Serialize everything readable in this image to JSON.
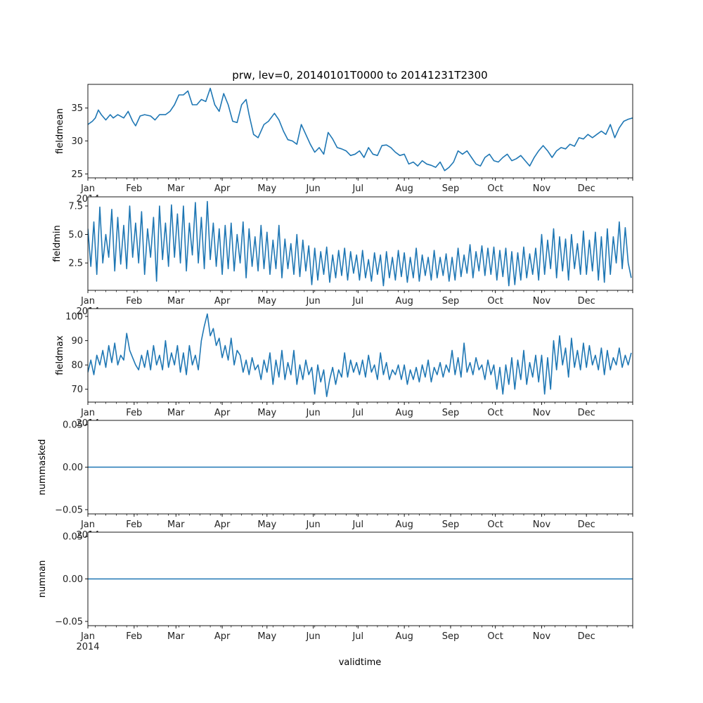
{
  "colors": {
    "line": "#1f77b4",
    "axis": "#000000"
  },
  "chart_data": {
    "type": "line",
    "title": "prw, lev=0, 20140101T0000 to 20141231T2300",
    "xlabel": "validtime",
    "x_units": "day of year 2014 (0 = Jan 1)",
    "x_range": [
      0,
      365
    ],
    "x_ticks": [
      {
        "day": 0,
        "label": "Jan"
      },
      {
        "day": 31,
        "label": "Feb"
      },
      {
        "day": 59,
        "label": "Mar"
      },
      {
        "day": 90,
        "label": "Apr"
      },
      {
        "day": 120,
        "label": "May"
      },
      {
        "day": 151,
        "label": "Jun"
      },
      {
        "day": 181,
        "label": "Jul"
      },
      {
        "day": 212,
        "label": "Aug"
      },
      {
        "day": 243,
        "label": "Sep"
      },
      {
        "day": 273,
        "label": "Oct"
      },
      {
        "day": 304,
        "label": "Nov"
      },
      {
        "day": 334,
        "label": "Dec"
      }
    ],
    "year_label": "2014",
    "panels": [
      {
        "ylabel": "fieldmean",
        "ylim": [
          24.4,
          38.6
        ],
        "yticks": [
          {
            "v": 25,
            "label": "25"
          },
          {
            "v": 30,
            "label": "30"
          },
          {
            "v": 35,
            "label": "35"
          }
        ],
        "points": [
          [
            0,
            32.5
          ],
          [
            3,
            33
          ],
          [
            5,
            33.5
          ],
          [
            7,
            34.7
          ],
          [
            9,
            34
          ],
          [
            12,
            33.2
          ],
          [
            15,
            34
          ],
          [
            17,
            33.5
          ],
          [
            20,
            34
          ],
          [
            24,
            33.5
          ],
          [
            27,
            34.5
          ],
          [
            30,
            33
          ],
          [
            32,
            32.3
          ],
          [
            35,
            33.8
          ],
          [
            38,
            34
          ],
          [
            42,
            33.8
          ],
          [
            45,
            33.2
          ],
          [
            48,
            34
          ],
          [
            52,
            34
          ],
          [
            55,
            34.5
          ],
          [
            58,
            35.5
          ],
          [
            61,
            37
          ],
          [
            64,
            37
          ],
          [
            67,
            37.6
          ],
          [
            70,
            35.5
          ],
          [
            73,
            35.5
          ],
          [
            76,
            36.3
          ],
          [
            79,
            36
          ],
          [
            82,
            38
          ],
          [
            85,
            35.5
          ],
          [
            88,
            34.5
          ],
          [
            91,
            37.2
          ],
          [
            94,
            35.5
          ],
          [
            97,
            33
          ],
          [
            100,
            32.8
          ],
          [
            103,
            35.5
          ],
          [
            106,
            36.3
          ],
          [
            108,
            34
          ],
          [
            111,
            31
          ],
          [
            114,
            30.5
          ],
          [
            118,
            32.5
          ],
          [
            121,
            33
          ],
          [
            125,
            34.2
          ],
          [
            128,
            33.2
          ],
          [
            131,
            31.5
          ],
          [
            134,
            30.2
          ],
          [
            137,
            30
          ],
          [
            140,
            29.5
          ],
          [
            143,
            32.5
          ],
          [
            146,
            31
          ],
          [
            149,
            29.5
          ],
          [
            152,
            28.3
          ],
          [
            155,
            29
          ],
          [
            158,
            28
          ],
          [
            161,
            31.3
          ],
          [
            164,
            30.3
          ],
          [
            167,
            29
          ],
          [
            170,
            28.8
          ],
          [
            173,
            28.5
          ],
          [
            176,
            27.8
          ],
          [
            179,
            28
          ],
          [
            182,
            28.5
          ],
          [
            185,
            27.5
          ],
          [
            188,
            29
          ],
          [
            191,
            28
          ],
          [
            194,
            27.8
          ],
          [
            197,
            29.3
          ],
          [
            200,
            29.4
          ],
          [
            203,
            29
          ],
          [
            206,
            28.3
          ],
          [
            209,
            27.8
          ],
          [
            212,
            28
          ],
          [
            215,
            26.5
          ],
          [
            218,
            26.8
          ],
          [
            221,
            26.2
          ],
          [
            224,
            27
          ],
          [
            227,
            26.5
          ],
          [
            230,
            26.3
          ],
          [
            233,
            26
          ],
          [
            236,
            26.8
          ],
          [
            239,
            25.5
          ],
          [
            242,
            26
          ],
          [
            245,
            26.8
          ],
          [
            248,
            28.5
          ],
          [
            251,
            28
          ],
          [
            254,
            28.5
          ],
          [
            257,
            27.5
          ],
          [
            260,
            26.5
          ],
          [
            263,
            26.2
          ],
          [
            266,
            27.5
          ],
          [
            269,
            28
          ],
          [
            272,
            27
          ],
          [
            275,
            26.8
          ],
          [
            278,
            27.5
          ],
          [
            281,
            28
          ],
          [
            284,
            27
          ],
          [
            287,
            27.3
          ],
          [
            290,
            27.8
          ],
          [
            293,
            27
          ],
          [
            296,
            26.2
          ],
          [
            299,
            27.5
          ],
          [
            302,
            28.5
          ],
          [
            305,
            29.3
          ],
          [
            308,
            28.5
          ],
          [
            311,
            27.5
          ],
          [
            314,
            28.5
          ],
          [
            317,
            29
          ],
          [
            320,
            28.8
          ],
          [
            323,
            29.5
          ],
          [
            326,
            29.2
          ],
          [
            329,
            30.5
          ],
          [
            332,
            30.3
          ],
          [
            335,
            31
          ],
          [
            338,
            30.5
          ],
          [
            341,
            31
          ],
          [
            344,
            31.5
          ],
          [
            347,
            31
          ],
          [
            350,
            32.5
          ],
          [
            353,
            30.5
          ],
          [
            356,
            32
          ],
          [
            359,
            33
          ],
          [
            362,
            33.3
          ],
          [
            365,
            33.5
          ]
        ]
      },
      {
        "ylabel": "fieldmin",
        "ylim": [
          0.1,
          8.3
        ],
        "yticks": [
          {
            "v": 2.5,
            "label": "2.5"
          },
          {
            "v": 5.0,
            "label": "5.0"
          },
          {
            "v": 7.5,
            "label": "7.5"
          }
        ],
        "x_start": 0,
        "x_step": 2,
        "values": [
          5.5,
          2.2,
          6.1,
          1.5,
          7.4,
          2.5,
          5.0,
          3.0,
          7.2,
          1.8,
          6.5,
          2.4,
          5.8,
          2.0,
          7.5,
          3.0,
          6.0,
          2.5,
          7.0,
          1.5,
          5.5,
          3.0,
          6.5,
          0.9,
          7.5,
          2.8,
          6.0,
          2.2,
          7.6,
          3.0,
          6.8,
          2.5,
          7.5,
          1.8,
          6.0,
          3.2,
          7.8,
          2.5,
          6.5,
          2.0,
          7.9,
          2.8,
          6.0,
          2.2,
          5.5,
          1.5,
          5.8,
          2.0,
          6.0,
          1.8,
          5.0,
          2.5,
          6.1,
          1.2,
          5.5,
          2.2,
          4.8,
          1.8,
          5.8,
          2.0,
          5.2,
          1.5,
          4.5,
          2.0,
          5.8,
          1.2,
          4.6,
          2.0,
          4.2,
          1.5,
          5.0,
          1.3,
          4.5,
          1.8,
          4.0,
          0.6,
          3.8,
          1.0,
          3.5,
          1.5,
          3.9,
          0.8,
          3.2,
          1.2,
          3.6,
          1.4,
          3.8,
          1.0,
          3.5,
          1.6,
          3.2,
          1.0,
          3.6,
          1.2,
          2.8,
          0.9,
          3.4,
          1.5,
          3.2,
          0.5,
          3.5,
          1.2,
          3.0,
          1.0,
          3.6,
          1.3,
          3.4,
          0.8,
          3.0,
          1.2,
          3.8,
          0.9,
          3.2,
          1.4,
          3.0,
          1.0,
          3.6,
          1.2,
          3.0,
          1.4,
          3.3,
          0.9,
          3.0,
          1.0,
          3.8,
          1.3,
          3.2,
          1.6,
          4.1,
          1.2,
          3.5,
          1.8,
          4.0,
          1.4,
          3.8,
          1.5,
          3.9,
          1.0,
          3.6,
          1.3,
          3.8,
          0.5,
          3.5,
          0.6,
          3.4,
          1.0,
          3.9,
          1.2,
          3.3,
          1.5,
          3.8,
          1.0,
          5.0,
          1.5,
          4.5,
          2.0,
          5.5,
          1.2,
          4.8,
          1.8,
          4.6,
          1.0,
          5.0,
          2.0,
          4.2,
          1.5,
          5.3,
          1.5,
          4.5,
          1.8,
          5.2,
          1.0,
          4.8,
          0.8,
          5.5,
          1.5,
          4.8,
          2.5,
          6.1,
          2.0,
          5.6,
          2.5,
          1.2
        ]
      },
      {
        "ylabel": "fieldmax",
        "ylim": [
          64.7,
          103.2
        ],
        "yticks": [
          {
            "v": 70,
            "label": "70"
          },
          {
            "v": 80,
            "label": "80"
          },
          {
            "v": 90,
            "label": "90"
          },
          {
            "v": 100,
            "label": "100"
          }
        ],
        "x_start": 0,
        "x_step": 2,
        "values": [
          77,
          82,
          76,
          84,
          80,
          86,
          79,
          88,
          81,
          89,
          80,
          84,
          82,
          93,
          86,
          83,
          80,
          78,
          84,
          79,
          86,
          78,
          88,
          80,
          84,
          78,
          90,
          79,
          85,
          80,
          88,
          77,
          85,
          76,
          88,
          80,
          84,
          78,
          90,
          96,
          101,
          92,
          95,
          88,
          91,
          83,
          88,
          82,
          91,
          80,
          86,
          84,
          77,
          82,
          76,
          83,
          78,
          80,
          74,
          82,
          77,
          85,
          72,
          82,
          75,
          86,
          74,
          81,
          76,
          86,
          72,
          80,
          74,
          82,
          76,
          79,
          68,
          80,
          73,
          78,
          67,
          74,
          79,
          72,
          78,
          75,
          85,
          75,
          82,
          77,
          81,
          76,
          82,
          75,
          84,
          77,
          80,
          74,
          85,
          76,
          81,
          74,
          78,
          76,
          80,
          74,
          80,
          72,
          78,
          74,
          79,
          73,
          80,
          75,
          82,
          73,
          79,
          76,
          81,
          75,
          80,
          77,
          86,
          76,
          83,
          75,
          89,
          77,
          81,
          76,
          83,
          78,
          80,
          74,
          82,
          76,
          80,
          70,
          79,
          68,
          80,
          72,
          83,
          70,
          82,
          74,
          86,
          72,
          81,
          75,
          84,
          73,
          84,
          68,
          83,
          70,
          90,
          78,
          92,
          80,
          87,
          75,
          91,
          79,
          86,
          78,
          89,
          79,
          88,
          80,
          84,
          78,
          87,
          76,
          86,
          78,
          83,
          80,
          87,
          79,
          84,
          80,
          85
        ]
      },
      {
        "ylabel": "nummasked",
        "ylim": [
          -0.055,
          0.055
        ],
        "yticks": [
          {
            "v": -0.05,
            "label": "−0.05"
          },
          {
            "v": 0,
            "label": "0.00"
          },
          {
            "v": 0.05,
            "label": "0.05"
          }
        ],
        "points": [
          [
            0,
            0
          ],
          [
            365,
            0
          ]
        ]
      },
      {
        "ylabel": "numnan",
        "ylim": [
          -0.055,
          0.055
        ],
        "yticks": [
          {
            "v": -0.05,
            "label": "−0.05"
          },
          {
            "v": 0,
            "label": "0.00"
          },
          {
            "v": 0.05,
            "label": "0.05"
          }
        ],
        "points": [
          [
            0,
            0
          ],
          [
            365,
            0
          ]
        ]
      }
    ]
  }
}
